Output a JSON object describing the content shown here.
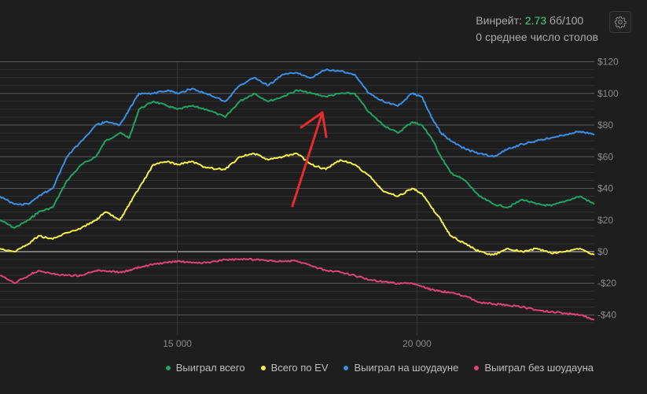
{
  "stats": {
    "winrate_label": "Винрейт:",
    "winrate_value": "2.73",
    "winrate_unit": "бб/100",
    "tables_text": "0 среднее число столов"
  },
  "icons": {
    "settings": "gear-icon"
  },
  "colors": {
    "background": "#1e1e1e",
    "won_total": "#21a366",
    "all_in_ev": "#f2f04a",
    "won_showdown": "#3b8fe6",
    "won_no_showdown": "#e0427a",
    "annotation_arrow": "#e52b2b"
  },
  "legend": [
    {
      "label": "Выиграл всего",
      "color": "#21a366"
    },
    {
      "label": "Всего по EV",
      "color": "#f2f04a"
    },
    {
      "label": "Выиграл на шоудауне",
      "color": "#3b8fe6"
    },
    {
      "label": "Выиграл без шоудауна",
      "color": "#e0427a"
    }
  ],
  "chart_data": {
    "type": "line",
    "y_tick_labels": [
      "$120",
      "$100",
      "$80",
      "$60",
      "$40",
      "$20",
      "$0",
      "-$20",
      "-$40"
    ],
    "y_ticks": [
      120,
      100,
      80,
      60,
      40,
      20,
      0,
      -20,
      -40
    ],
    "x_tick_labels": [
      "15 000",
      "20 000"
    ],
    "x_ticks": [
      15000,
      20000
    ],
    "xlim": [
      11300,
      23700
    ],
    "ylim": [
      -50,
      120
    ],
    "grid": true,
    "legend_position": "bottom-right",
    "annotation": "red hand-drawn arrow pointing to the peak",
    "series": [
      {
        "name": "Выиграл всего",
        "color": "#21a366",
        "x": [
          11300,
          11600,
          11900,
          12100,
          12400,
          12700,
          13000,
          13300,
          13500,
          13800,
          14000,
          14200,
          14500,
          14800,
          15000,
          15300,
          15600,
          16000,
          16300,
          16600,
          16900,
          17200,
          17500,
          17800,
          18100,
          18400,
          18700,
          19000,
          19300,
          19600,
          19900,
          20100,
          20300,
          20500,
          20700,
          21000,
          21300,
          21600,
          21900,
          22200,
          22500,
          22800,
          23100,
          23400,
          23700
        ],
        "y": [
          20,
          15,
          20,
          25,
          28,
          45,
          55,
          60,
          70,
          75,
          72,
          90,
          95,
          92,
          90,
          92,
          90,
          85,
          95,
          100,
          95,
          98,
          102,
          100,
          98,
          100,
          100,
          88,
          80,
          75,
          82,
          80,
          72,
          60,
          50,
          45,
          35,
          30,
          28,
          33,
          30,
          29,
          32,
          35,
          30
        ]
      },
      {
        "name": "Всего по EV",
        "color": "#f2f04a",
        "x": [
          11300,
          11600,
          11900,
          12100,
          12400,
          12700,
          13000,
          13300,
          13500,
          13800,
          14000,
          14200,
          14500,
          14800,
          15000,
          15300,
          15600,
          16000,
          16300,
          16600,
          16900,
          17200,
          17500,
          17800,
          18100,
          18400,
          18700,
          19000,
          19300,
          19600,
          19900,
          20100,
          20300,
          20500,
          20700,
          21000,
          21300,
          21600,
          21900,
          22200,
          22500,
          22800,
          23100,
          23400,
          23700
        ],
        "y": [
          2,
          0,
          5,
          10,
          8,
          12,
          15,
          20,
          25,
          20,
          30,
          40,
          55,
          57,
          55,
          57,
          53,
          52,
          60,
          62,
          58,
          60,
          62,
          55,
          52,
          58,
          55,
          48,
          38,
          35,
          40,
          37,
          28,
          20,
          10,
          5,
          0,
          -2,
          2,
          0,
          2,
          -1,
          0,
          2,
          -2
        ]
      },
      {
        "name": "Выиграл на шоудауне",
        "color": "#3b8fe6",
        "x": [
          11300,
          11600,
          11900,
          12100,
          12400,
          12700,
          13000,
          13300,
          13500,
          13800,
          14000,
          14200,
          14500,
          14800,
          15000,
          15300,
          15600,
          16000,
          16300,
          16600,
          16900,
          17200,
          17500,
          17800,
          18100,
          18400,
          18700,
          19000,
          19300,
          19600,
          19900,
          20100,
          20300,
          20500,
          20700,
          21000,
          21300,
          21600,
          21900,
          22200,
          22500,
          22800,
          23100,
          23400,
          23700
        ],
        "y": [
          35,
          30,
          30,
          35,
          40,
          60,
          70,
          80,
          82,
          80,
          90,
          100,
          100,
          102,
          100,
          103,
          100,
          95,
          105,
          110,
          105,
          112,
          113,
          110,
          115,
          114,
          112,
          100,
          95,
          92,
          100,
          98,
          85,
          75,
          70,
          65,
          62,
          60,
          65,
          68,
          70,
          72,
          74,
          76,
          74
        ]
      },
      {
        "name": "Выиграл без шоудауна",
        "color": "#e0427a",
        "x": [
          11300,
          11600,
          11900,
          12100,
          12400,
          12700,
          13000,
          13300,
          13500,
          13800,
          14000,
          14200,
          14500,
          14800,
          15000,
          15300,
          15600,
          16000,
          16300,
          16600,
          16900,
          17200,
          17500,
          17800,
          18100,
          18400,
          18700,
          19000,
          19300,
          19600,
          19900,
          20100,
          20300,
          20500,
          20700,
          21000,
          21300,
          21600,
          21900,
          22200,
          22500,
          22800,
          23100,
          23400,
          23700
        ],
        "y": [
          -15,
          -20,
          -15,
          -12,
          -14,
          -15,
          -15,
          -12,
          -12,
          -13,
          -12,
          -10,
          -8,
          -7,
          -6,
          -7,
          -7,
          -5,
          -5,
          -5,
          -6,
          -6,
          -6,
          -9,
          -12,
          -13,
          -15,
          -18,
          -19,
          -20,
          -20,
          -22,
          -24,
          -25,
          -26,
          -28,
          -32,
          -33,
          -34,
          -35,
          -37,
          -38,
          -39,
          -40,
          -43
        ]
      }
    ]
  }
}
